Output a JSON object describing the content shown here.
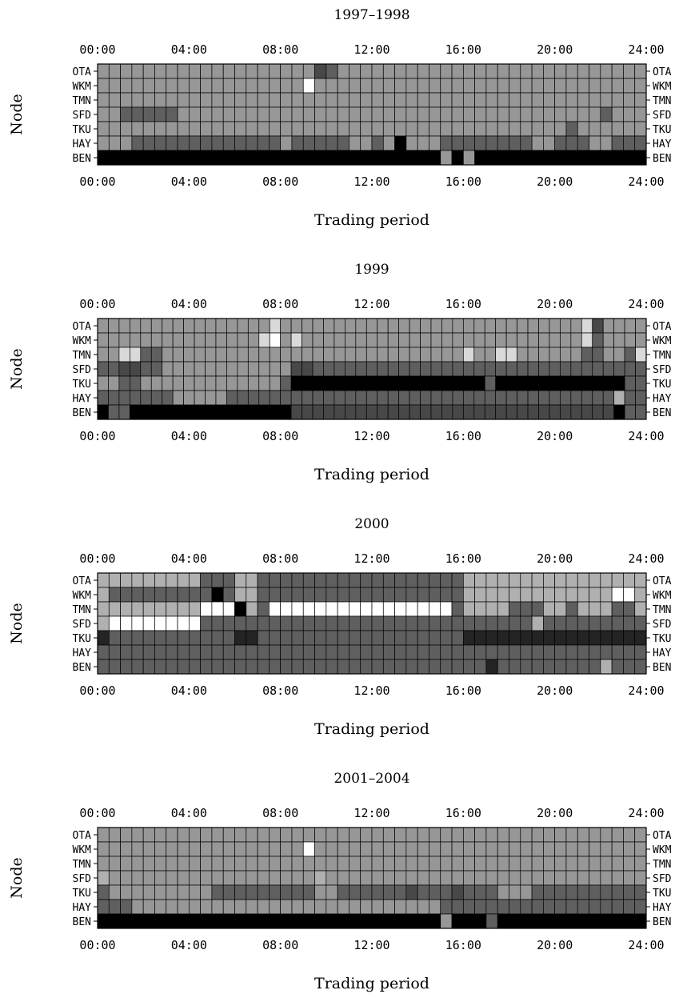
{
  "palette": {
    "0": "#ffffff",
    "1": "#d9d9d9",
    "2": "#b0b0b0",
    "3": "#979797",
    "4": "#5f5f5f",
    "5": "#484848",
    "6": "#242424",
    "7": "#000000"
  },
  "chart_data": [
    {
      "type": "heatmap",
      "title": "1997–1998",
      "xlabel": "Trading period",
      "ylabel": "Node",
      "x_ticks": [
        "00:00",
        "04:00",
        "08:00",
        "12:00",
        "16:00",
        "20:00",
        "24:00"
      ],
      "nodes": [
        "OTA",
        "WKM",
        "TMN",
        "SFD",
        "TKU",
        "HAY",
        "BEN"
      ],
      "levels": [
        "333333333333333333354333333333333333333333333333",
        "333333333333333333033333333333333333333333333333",
        "333333333333333333333333333333333333333333333333",
        "334444433333333333333333333333333333333333334333",
        "333333333333333333333333333333333333333334333333",
        "333444444444444434444433437333444444443344433444",
        "777777777777777777777777777777373777777777777777"
      ]
    },
    {
      "type": "heatmap",
      "title": "1999",
      "xlabel": "Trading period",
      "ylabel": "Node",
      "x_ticks": [
        "00:00",
        "04:00",
        "08:00",
        "12:00",
        "16:00",
        "20:00",
        "24:00"
      ],
      "nodes": [
        "OTA",
        "WKM",
        "TMN",
        "SFD",
        "TKU",
        "HAY",
        "BEN"
      ],
      "levels": [
        "333333333333333313333333333333333333333333333153333",
        "333333333333333103133333333333333333333333333143333",
        "331144333333333333333333333333333313311333333443341",
        "445544333333333333554444444444444444444444444444444",
        "334433333333333334777777777777777777477777777777744",
        "444444433333444444444444444444444444444444444444244",
        "744777777777777777555555555555555555555555555555744"
      ]
    },
    {
      "type": "heatmap",
      "title": "2000",
      "xlabel": "Trading period",
      "ylabel": "Node",
      "x_ticks": [
        "00:00",
        "04:00",
        "08:00",
        "12:00",
        "16:00",
        "20:00",
        "24:00"
      ],
      "nodes": [
        "OTA",
        "WKM",
        "TMN",
        "SFD",
        "TKU",
        "HAY",
        "BEN"
      ],
      "levels": [
        "222222222444224444444444444444442222222222222222",
        "244444444474224444444444444444442222222222222002",
        "222222222000724000000000000000042222444224222442",
        "200000000444444444444444444444444444442444444444",
        "644444444444664444444444444444446666666666666666",
        "444444444444444444444444444444444444444444444444",
        "444444444444444444444444444444444464444444442444"
      ]
    },
    {
      "type": "heatmap",
      "title": "2001–2004",
      "xlabel": "Trading period",
      "ylabel": "Node",
      "x_ticks": [
        "00:00",
        "04:00",
        "08:00",
        "12:00",
        "16:00",
        "20:00",
        "24:00"
      ],
      "nodes": [
        "OTA",
        "WKM",
        "TMN",
        "SFD",
        "TKU",
        "HAY",
        "BEN"
      ],
      "levels": [
        "333333333333333333333333333333333333333333333333",
        "333333333333333333033333333333333333333333333333",
        "333333333333333333333333333333333333333333333333",
        "233333333333333333323333333333333333333333333333",
        "433333333344444444433444444544454443334444444444",
        "444333333333333333333333333333444444444444444444",
        "777777777777777777777777777777377747777777777777"
      ]
    }
  ]
}
